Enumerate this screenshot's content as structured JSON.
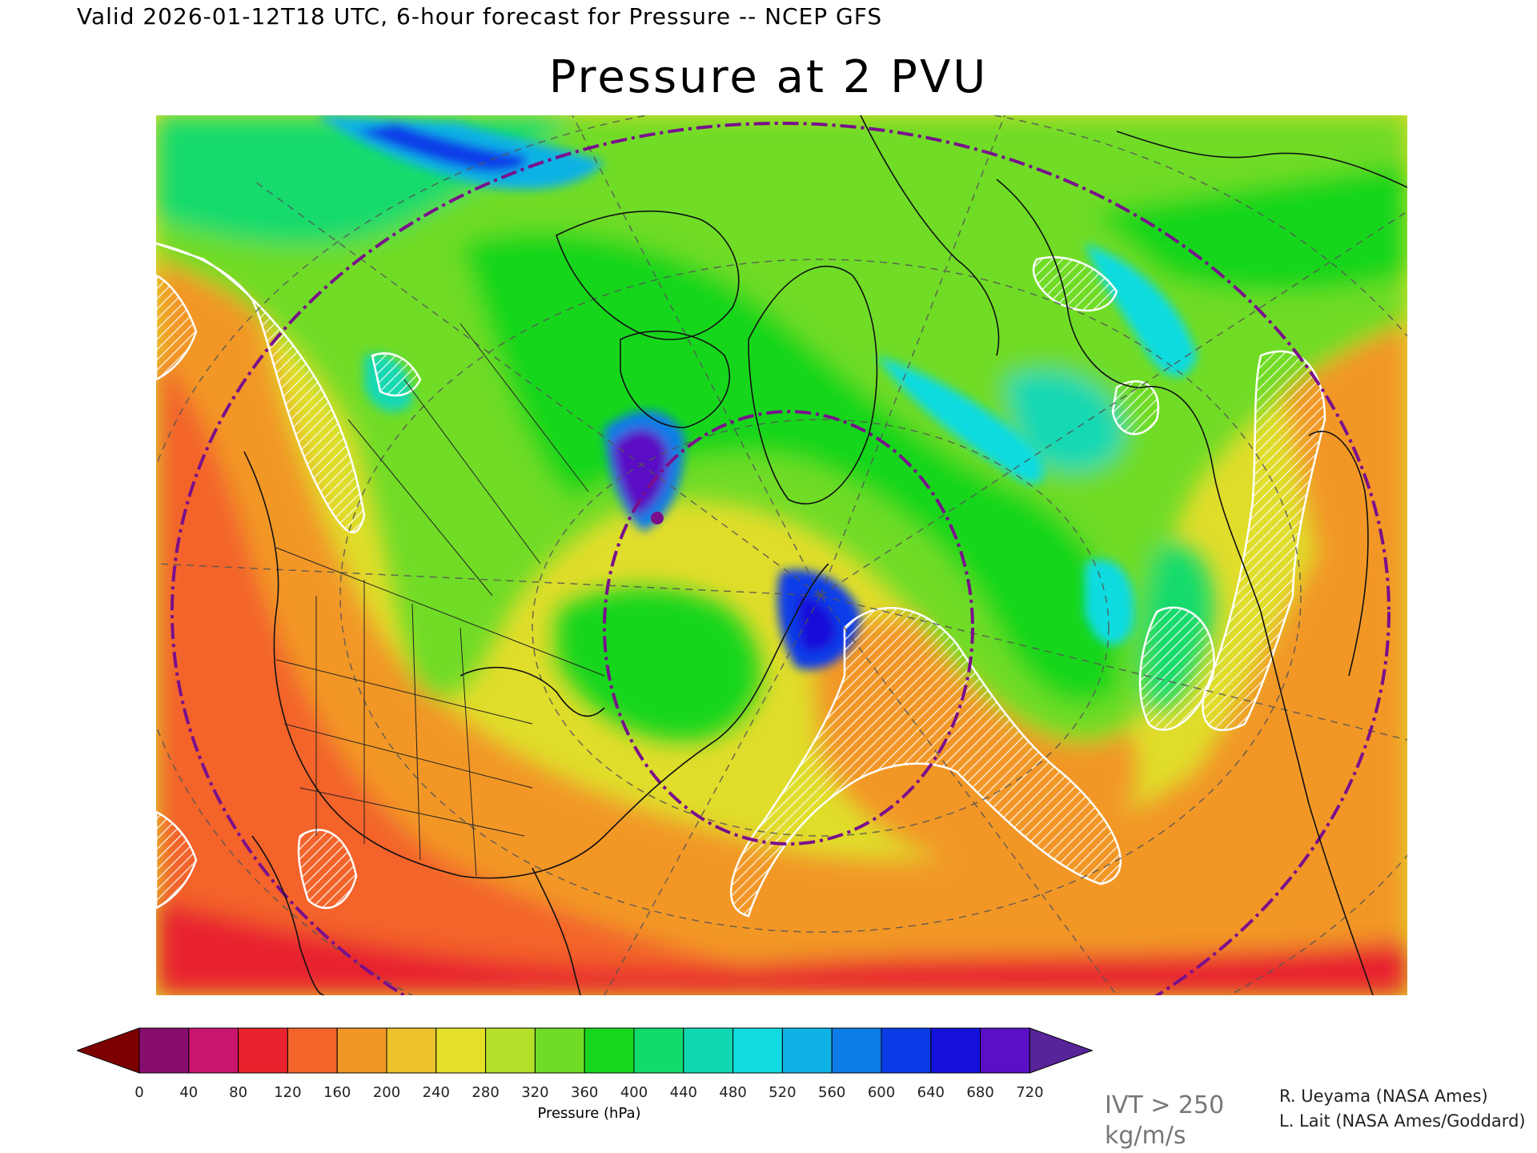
{
  "header": {
    "valid_line": "Valid 2026-01-12T18 UTC, 6-hour forecast for Pressure -- NCEP GFS",
    "title": "Pressure at 2 PVU"
  },
  "map": {
    "projection": "polar stereographic, North America / North Atlantic",
    "hatched_overlay_meaning": "IVT > 250 kg/m/s",
    "marker_color": "#7a0f8c"
  },
  "colorbar": {
    "title": "Pressure (hPa)",
    "ticks": [
      "0",
      "40",
      "80",
      "120",
      "160",
      "200",
      "240",
      "280",
      "320",
      "360",
      "400",
      "440",
      "480",
      "520",
      "560",
      "600",
      "640",
      "680",
      "720"
    ],
    "under_color": "#7d0000",
    "over_color": "#58249a",
    "colors": [
      "#870e6f",
      "#c9156d",
      "#e8232d",
      "#f3642a",
      "#f29726",
      "#ecc12b",
      "#e4e02a",
      "#b5e02a",
      "#6fdc28",
      "#17d61e",
      "#12db6c",
      "#12d8b2",
      "#10dbe0",
      "#0fb2e4",
      "#0d7ce6",
      "#0a3ce8",
      "#1410d9",
      "#5a10c4"
    ]
  },
  "ivt_label": {
    "line1": "IVT > 250",
    "line2": "kg/m/s"
  },
  "credits": {
    "line1": "R. Ueyama (NASA Ames)",
    "line2": "L. Lait (NASA Ames/Goddard)"
  }
}
